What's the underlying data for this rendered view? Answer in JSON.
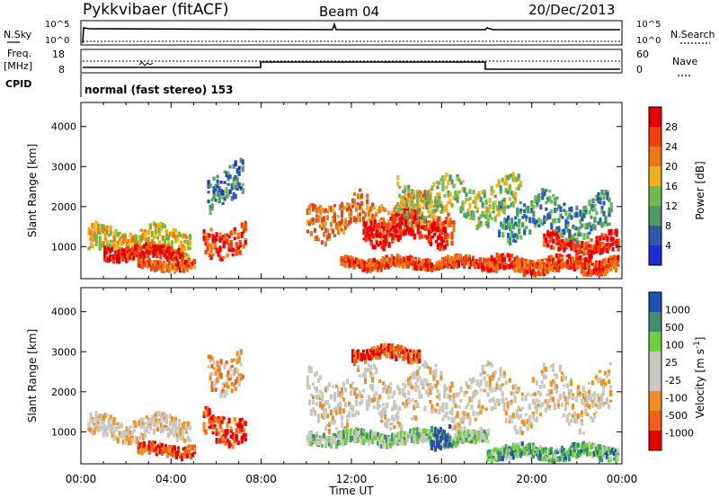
{
  "header": {
    "station": "Pykkvibaer (fitACF)",
    "beam": "Beam 04",
    "date": "20/Dec/2013"
  },
  "summary_panel": {
    "nsky_label": "N.Sky",
    "nsearch_label": "N.Search",
    "freq_label_1": "Freq.",
    "freq_label_2": "[MHz]",
    "nave_label": "Nave",
    "cpid_label": "CPID",
    "noise_ticks_left": [
      "10^5",
      "10^0"
    ],
    "noise_ticks_right": [
      "10^5",
      "10^0"
    ],
    "freq_ticks": [
      "18",
      "8"
    ],
    "nave_ticks": [
      "60",
      "0"
    ],
    "mode_text": "normal (fast stereo) 153"
  },
  "colors": {
    "power_scale": [
      "#1e2dd2",
      "#2a5aaa",
      "#4a9a6a",
      "#6dbb4e",
      "#f0b020",
      "#f07810",
      "#f04010",
      "#e80000"
    ],
    "velocity_scale": [
      "#e80000",
      "#f06010",
      "#f09020",
      "#c8c8c0",
      "#c8c8c0",
      "#6ecf3e",
      "#3f8f6f",
      "#2050b0"
    ]
  },
  "chart_data": [
    {
      "type": "heatmap",
      "name": "power",
      "xlabel": "",
      "ylabel": "Slant Range [km]",
      "xlim": [
        "00:00",
        "24:00"
      ],
      "ylim": [
        200,
        4600
      ],
      "y_ticks": [
        "4000",
        "3000",
        "2000",
        "1000"
      ],
      "colorbar_label": "Power [dB]",
      "colorbar_ticks": [
        "28",
        "24",
        "20",
        "16",
        "12",
        "8",
        "4"
      ],
      "bands": [
        {
          "t_start": 0.3,
          "t_end": 4.8,
          "range_center": 1200,
          "width": 600,
          "level": 0.55
        },
        {
          "t_start": 1.0,
          "t_end": 4.5,
          "range_center": 900,
          "width": 300,
          "level": 0.9
        },
        {
          "t_start": 2.5,
          "t_end": 5.0,
          "range_center": 600,
          "width": 200,
          "level": 0.75
        },
        {
          "t_start": 5.4,
          "t_end": 7.3,
          "range_center": 1200,
          "width": 700,
          "level": 0.85
        },
        {
          "t_start": 5.6,
          "t_end": 7.2,
          "range_center": 2600,
          "width": 900,
          "level": 0.25
        },
        {
          "t_start": 10.0,
          "t_end": 16.5,
          "range_center": 1800,
          "width": 900,
          "level": 0.7
        },
        {
          "t_start": 12.5,
          "t_end": 16.2,
          "range_center": 1500,
          "width": 700,
          "level": 0.95
        },
        {
          "t_start": 11.5,
          "t_end": 18.5,
          "range_center": 650,
          "width": 250,
          "level": 0.8
        },
        {
          "t_start": 14.0,
          "t_end": 19.5,
          "range_center": 2200,
          "width": 900,
          "level": 0.45
        },
        {
          "t_start": 18.0,
          "t_end": 23.8,
          "range_center": 600,
          "width": 350,
          "level": 0.8
        },
        {
          "t_start": 20.5,
          "t_end": 23.8,
          "range_center": 1100,
          "width": 500,
          "level": 0.9
        },
        {
          "t_start": 18.5,
          "t_end": 23.5,
          "range_center": 1800,
          "width": 900,
          "level": 0.3
        }
      ]
    },
    {
      "type": "heatmap",
      "name": "velocity",
      "xlabel": "Time UT",
      "ylabel": "Slant Range [km]",
      "xlim": [
        "00:00",
        "24:00"
      ],
      "ylim": [
        200,
        4600
      ],
      "x_ticks": [
        "00:00",
        "04:00",
        "08:00",
        "12:00",
        "16:00",
        "20:00",
        "00:00"
      ],
      "y_ticks": [
        "4000",
        "3000",
        "2000",
        "1000"
      ],
      "colorbar_label": "Velocity [m s^-1]",
      "colorbar_ticks": [
        "1000",
        "500",
        "100",
        "25",
        "-25",
        "-100",
        "-500",
        "-1000"
      ],
      "bands": [
        {
          "t_start": 0.3,
          "t_end": 4.8,
          "range_center": 1150,
          "width": 500,
          "level": 0.45
        },
        {
          "t_start": 2.5,
          "t_end": 5.0,
          "range_center": 600,
          "width": 250,
          "level": 0.15
        },
        {
          "t_start": 5.4,
          "t_end": 7.3,
          "range_center": 1200,
          "width": 700,
          "level": 0.15
        },
        {
          "t_start": 5.6,
          "t_end": 7.2,
          "range_center": 2600,
          "width": 900,
          "level": 0.3
        },
        {
          "t_start": 10.0,
          "t_end": 23.5,
          "range_center": 1900,
          "width": 1200,
          "level": 0.45
        },
        {
          "t_start": 10.0,
          "t_end": 18.0,
          "range_center": 900,
          "width": 300,
          "level": 0.65
        },
        {
          "t_start": 15.5,
          "t_end": 16.3,
          "range_center": 1000,
          "width": 500,
          "level": 0.95
        },
        {
          "t_start": 18.0,
          "t_end": 23.8,
          "range_center": 550,
          "width": 300,
          "level": 0.75
        },
        {
          "t_start": 12.0,
          "t_end": 15.0,
          "range_center": 3000,
          "width": 300,
          "level": 0.15
        }
      ]
    }
  ]
}
